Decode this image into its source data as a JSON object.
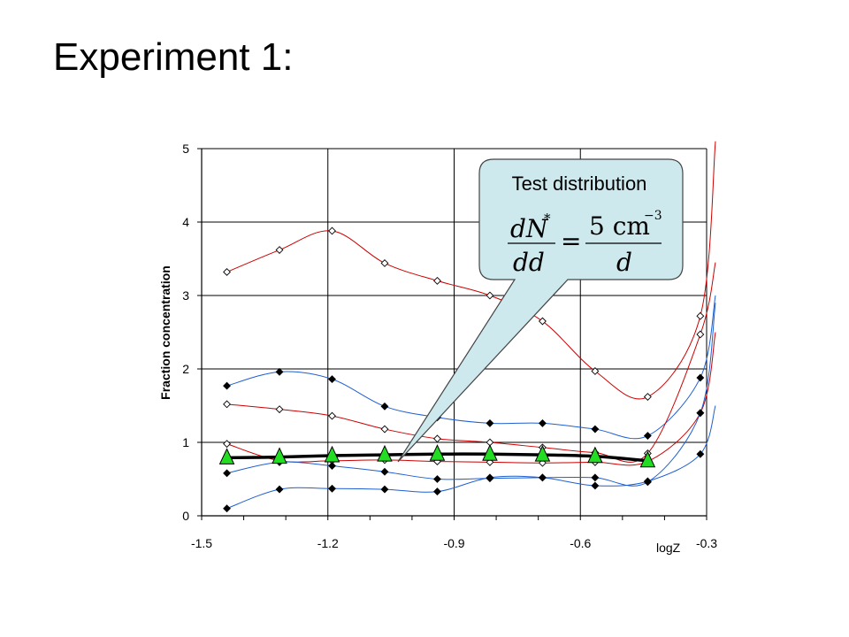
{
  "slide": {
    "title": "Experiment 1:"
  },
  "chart_data": {
    "type": "line",
    "xlabel": "logZ",
    "ylabel": "Fraction concentration",
    "xlim": [
      -1.5,
      -0.3
    ],
    "ylim": [
      0,
      5
    ],
    "x_ticks": [
      -1.5,
      -1.2,
      -0.9,
      -0.6,
      -0.3
    ],
    "x_tick_labels": [
      "-1.5",
      "-1.2",
      "-0.9",
      "-0.6",
      "-0.3"
    ],
    "y_ticks": [
      0,
      1,
      2,
      3,
      4,
      5
    ],
    "y_tick_labels": [
      "0",
      "1",
      "2",
      "3",
      "4",
      "5"
    ],
    "grid": true,
    "series": [
      {
        "color": "#cc0000",
        "marker": "diamond-open",
        "x": [
          -1.44,
          -1.315,
          -1.19,
          -1.065,
          -0.94,
          -0.815,
          -0.69,
          -0.565,
          -0.44,
          -0.315
        ],
        "y": [
          3.32,
          3.62,
          3.88,
          3.44,
          3.2,
          3.0,
          2.65,
          1.97,
          1.62,
          2.72
        ],
        "tail": [
          -0.3,
          5.1
        ]
      },
      {
        "color": "#1f5fd1",
        "marker": "diamond-filled",
        "x": [
          -1.44,
          -1.315,
          -1.19,
          -1.065,
          -0.94,
          -0.815,
          -0.69,
          -0.565,
          -0.44,
          -0.315
        ],
        "y": [
          1.77,
          1.96,
          1.86,
          1.49,
          1.34,
          1.26,
          1.26,
          1.18,
          1.09,
          1.88
        ],
        "tail": [
          -0.3,
          3.0
        ]
      },
      {
        "color": "#cc0000",
        "marker": "diamond-open",
        "x": [
          -1.44,
          -1.315,
          -1.19,
          -1.065,
          -0.94,
          -0.815,
          -0.69,
          -0.565,
          -0.44,
          -0.315
        ],
        "y": [
          1.52,
          1.45,
          1.36,
          1.18,
          1.05,
          1.0,
          0.93,
          0.86,
          0.85,
          2.47
        ],
        "tail": [
          -0.3,
          3.45
        ]
      },
      {
        "color": "#cc0000",
        "marker": "diamond-open",
        "x": [
          -1.44,
          -1.315,
          -1.19,
          -1.065,
          -0.94,
          -0.815,
          -0.69,
          -0.565,
          -0.44,
          -0.315
        ],
        "y": [
          0.98,
          0.75,
          0.75,
          0.76,
          0.74,
          0.73,
          0.72,
          0.73,
          0.74,
          1.4
        ],
        "tail": [
          -0.3,
          2.5
        ]
      },
      {
        "color": "#1f5fd1",
        "marker": "diamond-filled",
        "x": [
          -1.44,
          -1.315,
          -1.19,
          -1.065,
          -0.94,
          -0.815,
          -0.69,
          -0.565,
          -0.44,
          -0.315
        ],
        "y": [
          0.58,
          0.73,
          0.68,
          0.6,
          0.5,
          0.51,
          0.52,
          0.52,
          0.46,
          1.4
        ],
        "tail": [
          -0.3,
          2.9
        ]
      },
      {
        "color": "#1f5fd1",
        "marker": "diamond-filled",
        "x": [
          -1.44,
          -1.315,
          -1.19,
          -1.065,
          -0.94,
          -0.815,
          -0.69,
          -0.565,
          -0.44,
          -0.315
        ],
        "y": [
          0.1,
          0.36,
          0.37,
          0.36,
          0.33,
          0.52,
          0.52,
          0.41,
          0.47,
          0.84
        ],
        "tail": [
          -0.3,
          1.5
        ]
      },
      {
        "color": "#000000",
        "marker": "triangle-green",
        "thick": true,
        "x": [
          -1.44,
          -1.315,
          -1.19,
          -1.065,
          -0.94,
          -0.815,
          -0.69,
          -0.565,
          -0.44
        ],
        "y": [
          0.79,
          0.8,
          0.82,
          0.83,
          0.84,
          0.84,
          0.83,
          0.81,
          0.75
        ]
      }
    ],
    "callout": {
      "text": "Test distribution"
    },
    "colors": {
      "callout_fill": "#cde9ee",
      "callout_stroke": "#444444",
      "triangle_fill": "#22dd22"
    }
  }
}
